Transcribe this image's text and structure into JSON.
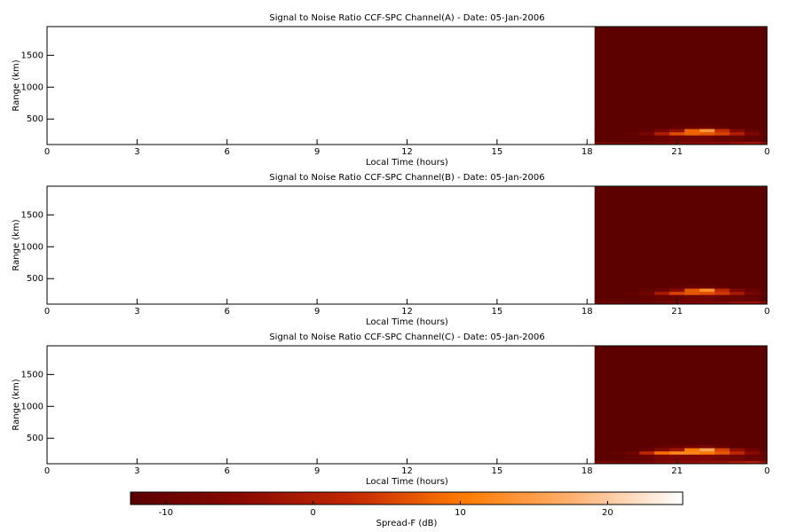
{
  "chart_data": [
    {
      "type": "heatmap",
      "title": "Signal to Noise Ratio CCF-SPC Channel(A) - Date: 05-Jan-2006",
      "xlabel": "Local Time (hours)",
      "ylabel": "Range (km)",
      "xlim": [
        0,
        24
      ],
      "xticks": [
        0,
        3,
        6,
        9,
        12,
        15,
        18,
        21,
        {
          "value": 24,
          "label": "0"
        }
      ],
      "ylim": [
        100,
        1950
      ],
      "yticks": [
        500,
        1000,
        1500
      ],
      "x_edges": [
        18.25,
        18.75,
        19.25,
        19.75,
        20.25,
        20.75,
        21.25,
        21.75,
        22.25,
        22.75,
        23.25,
        23.75,
        24
      ],
      "y_edges": [
        100,
        150,
        250,
        300,
        350,
        400,
        1950
      ],
      "values": [
        [
          -8,
          -9,
          -9,
          -8,
          -7,
          -6,
          -6,
          -5,
          -5,
          -3,
          -2,
          -4
        ],
        [
          -12,
          -12,
          -12,
          -11,
          -10,
          -9,
          -9,
          -9,
          -10,
          -10,
          -11,
          -12
        ],
        [
          -12,
          -12,
          -11,
          -8,
          0,
          6,
          8,
          7,
          5,
          0,
          -7,
          -11
        ],
        [
          -12,
          -12,
          -12,
          -11,
          -8,
          -4,
          8,
          14,
          3,
          -6,
          -10,
          -12
        ],
        [
          -12,
          -12,
          -12,
          -12,
          -12,
          -11,
          -10,
          -9,
          -11,
          -12,
          -12,
          -12
        ],
        [
          -12,
          -12,
          -12,
          -12,
          -12,
          -12,
          -12,
          -12,
          -12,
          -12,
          -12,
          -12
        ]
      ]
    },
    {
      "type": "heatmap",
      "title": "Signal to Noise Ratio CCF-SPC Channel(B) - Date: 05-Jan-2006",
      "xlabel": "Local Time (hours)",
      "ylabel": "Range (km)",
      "xlim": [
        0,
        24
      ],
      "xticks": [
        0,
        3,
        6,
        9,
        12,
        15,
        18,
        21,
        {
          "value": 24,
          "label": "0"
        }
      ],
      "ylim": [
        100,
        1950
      ],
      "yticks": [
        500,
        1000,
        1500
      ],
      "x_edges": [
        18.25,
        18.75,
        19.25,
        19.75,
        20.25,
        20.75,
        21.25,
        21.75,
        22.25,
        22.75,
        23.25,
        23.75,
        24
      ],
      "y_edges": [
        100,
        150,
        250,
        300,
        350,
        400,
        1950
      ],
      "values": [
        [
          -9,
          -9,
          -10,
          -9,
          -8,
          -7,
          -7,
          -6,
          -6,
          -4,
          -3,
          -5
        ],
        [
          -12,
          -12,
          -12,
          -11,
          -10,
          -10,
          -9,
          -9,
          -10,
          -10,
          -11,
          -12
        ],
        [
          -12,
          -12,
          -11,
          -9,
          -1,
          5,
          7,
          6,
          4,
          -1,
          -8,
          -11
        ],
        [
          -12,
          -12,
          -12,
          -11,
          -9,
          -5,
          7,
          13,
          2,
          -7,
          -10,
          -12
        ],
        [
          -12,
          -12,
          -12,
          -12,
          -12,
          -11,
          -10,
          -10,
          -11,
          -12,
          -12,
          -12
        ],
        [
          -12,
          -12,
          -12,
          -12,
          -12,
          -12,
          -12,
          -12,
          -12,
          -12,
          -12,
          -12
        ]
      ]
    },
    {
      "type": "heatmap",
      "title": "Signal to Noise Ratio CCF-SPC Channel(C) - Date: 05-Jan-2006",
      "xlabel": "Local Time (hours)",
      "ylabel": "Range (km)",
      "xlim": [
        0,
        24
      ],
      "xticks": [
        0,
        3,
        6,
        9,
        12,
        15,
        18,
        21,
        {
          "value": 24,
          "label": "0"
        }
      ],
      "ylim": [
        100,
        1950
      ],
      "yticks": [
        500,
        1000,
        1500
      ],
      "x_edges": [
        18.25,
        18.75,
        19.25,
        19.75,
        20.25,
        20.75,
        21.25,
        21.75,
        22.25,
        22.75,
        23.25,
        23.75,
        24
      ],
      "y_edges": [
        100,
        150,
        250,
        300,
        350,
        400,
        1950
      ],
      "values": [
        [
          -7,
          -8,
          -8,
          -7,
          -5,
          -4,
          -4,
          -3,
          -3,
          -1,
          0,
          -3
        ],
        [
          -12,
          -12,
          -11,
          -10,
          -8,
          -7,
          -7,
          -7,
          -8,
          -9,
          -10,
          -11
        ],
        [
          -12,
          -11,
          -9,
          2,
          9,
          12,
          12,
          10,
          7,
          2,
          -5,
          -10
        ],
        [
          -12,
          -12,
          -12,
          -10,
          -6,
          -2,
          10,
          16,
          5,
          -4,
          -9,
          -12
        ],
        [
          -12,
          -12,
          -12,
          -12,
          -11,
          -10,
          -9,
          -8,
          -10,
          -12,
          -12,
          -12
        ],
        [
          -12,
          -12,
          -12,
          -12,
          -12,
          -12,
          -12,
          -12,
          -12,
          -12,
          -12,
          -12
        ]
      ]
    }
  ],
  "colorbar": {
    "label": "Spread-F (dB)",
    "lim": [
      -12.4,
      25.1
    ],
    "ticks": [
      -10,
      0,
      10,
      20
    ],
    "colors": [
      "#5a0000",
      "#8a0a00",
      "#c22800",
      "#ff7a00",
      "#ffb070",
      "#ffffff"
    ]
  }
}
